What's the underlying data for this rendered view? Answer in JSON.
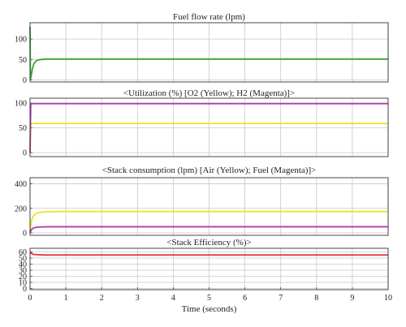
{
  "chart_data": [
    {
      "type": "line",
      "title": "Fuel flow rate (lpm)",
      "xlim": [
        0,
        10
      ],
      "ylim": [
        -5,
        140
      ],
      "yticks": [
        0,
        50,
        100
      ],
      "grid": true,
      "series": [
        {
          "color": "#3aa832",
          "x": [
            0,
            0.01,
            0.03,
            0.06,
            0.1,
            0.15,
            0.2,
            0.3,
            0.45,
            0.6,
            0.8,
            1,
            2,
            5,
            10
          ],
          "values": [
            130,
            2,
            8,
            25,
            38,
            45,
            48,
            50,
            51,
            51,
            51,
            51,
            51,
            51,
            51
          ]
        }
      ]
    },
    {
      "type": "line",
      "title": "<Utilization (%) [O2 (Yellow); H2 (Magenta)]>",
      "xlim": [
        0,
        10
      ],
      "ylim": [
        -8,
        110
      ],
      "yticks": [
        0,
        50,
        100
      ],
      "grid": true,
      "series": [
        {
          "color": "#f0e020",
          "x": [
            0,
            0.02,
            0.05,
            10
          ],
          "values": [
            0,
            58,
            59,
            59
          ]
        },
        {
          "color": "#b03ca8",
          "x": [
            0,
            0.02,
            0.05,
            10
          ],
          "values": [
            0,
            98,
            99,
            99
          ]
        }
      ]
    },
    {
      "type": "line",
      "title": "<Stack consumption (lpm) [Air (Yellow); Fuel (Magenta)]>",
      "xlim": [
        0,
        10
      ],
      "ylim": [
        -20,
        450
      ],
      "yticks": [
        0,
        200,
        400
      ],
      "grid": true,
      "series": [
        {
          "color": "#f0e020",
          "x": [
            0,
            0.02,
            0.05,
            0.1,
            0.15,
            0.2,
            0.3,
            0.45,
            0.6,
            0.8,
            1,
            10
          ],
          "values": [
            0,
            60,
            110,
            140,
            155,
            162,
            168,
            172,
            173,
            174,
            174,
            174
          ]
        },
        {
          "color": "#b03ca8",
          "x": [
            0,
            0.02,
            0.05,
            0.1,
            0.15,
            0.2,
            0.3,
            0.45,
            0.6,
            1,
            10
          ],
          "values": [
            0,
            15,
            30,
            40,
            44,
            46,
            48,
            49,
            50,
            50,
            50
          ]
        }
      ]
    },
    {
      "type": "line",
      "title": "<Stack Efficiency (%)>",
      "xlim": [
        0,
        10
      ],
      "ylim": [
        -2,
        66
      ],
      "yticks": [
        0,
        10,
        20,
        30,
        40,
        50,
        60
      ],
      "xticks": [
        0,
        1,
        2,
        3,
        4,
        5,
        6,
        7,
        8,
        9,
        10
      ],
      "xlabel": "Time (seconds)",
      "grid": true,
      "series": [
        {
          "color": "#e03030",
          "x": [
            0,
            0.02,
            0.05,
            0.1,
            0.2,
            0.4,
            10
          ],
          "values": [
            60,
            59,
            57,
            56,
            55.5,
            55,
            55
          ]
        }
      ]
    }
  ]
}
